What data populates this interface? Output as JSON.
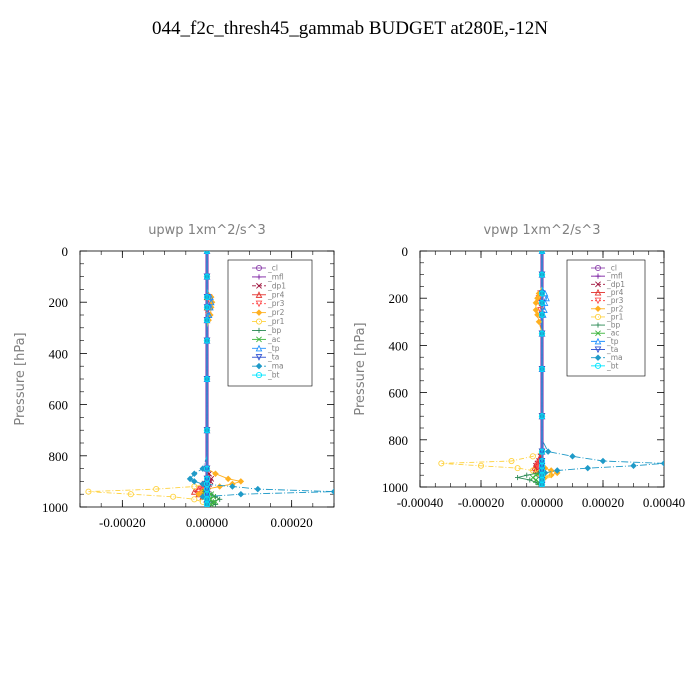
{
  "title": "044_f2c_thresh45_gammab  BUDGET at280E,-12N",
  "legend_entries": [
    "_cl",
    "_mfl",
    "_dp1",
    "_pr4",
    "_pr3",
    "_pr2",
    "_pr1",
    "_bp",
    "_ac",
    "_tp",
    "_ta",
    "_ma",
    "_bt"
  ],
  "colors": {
    "_cl": "#8e44ad",
    "_mfl": "#7b1fa2",
    "_dp1": "#a0153e",
    "_pr4": "#e3342f",
    "_pr3": "#ff4d4d",
    "_pr2": "#ffb020",
    "_pr1": "#ffd23f",
    "_bp": "#2e8b57",
    "_ac": "#3cb43c",
    "_tp": "#1e90ff",
    "_ta": "#3050d0",
    "_ma": "#1f9ac8",
    "_bt": "#00e5ff"
  },
  "chart_data": [
    {
      "type": "line",
      "title": "upwp   1xm^2/s^3",
      "ylabel": "Pressure [hPa]",
      "xlabel": "",
      "xlim": [
        -0.0003,
        0.0003
      ],
      "ylim": [
        1000,
        0
      ],
      "x_ticks": [
        "-0.00020",
        "0.00000",
        "0.00020"
      ],
      "x_tick_values": [
        -0.0002,
        0.0,
        0.0002
      ],
      "y_ticks": [
        "0",
        "200",
        "400",
        "600",
        "800",
        "1000"
      ],
      "y_tick_values": [
        0,
        200,
        400,
        600,
        800,
        1000
      ],
      "pressure": [
        0,
        50,
        100,
        150,
        180,
        200,
        220,
        250,
        270,
        300,
        350,
        400,
        500,
        600,
        700,
        800,
        850,
        870,
        890,
        900,
        910,
        920,
        930,
        940,
        950,
        960,
        970,
        980,
        990,
        1000
      ],
      "series": [
        {
          "name": "_cl",
          "values": [
            0,
            0,
            0,
            0,
            0,
            0,
            0,
            0,
            0,
            0,
            0,
            0,
            0,
            0,
            0,
            0,
            0,
            0,
            0,
            0,
            0,
            0,
            0,
            0,
            0,
            0,
            0,
            0,
            0,
            0
          ]
        },
        {
          "name": "_mfl",
          "values": [
            0,
            0,
            0,
            0,
            0,
            0,
            0,
            0,
            0,
            0,
            0,
            0,
            0,
            0,
            0,
            0,
            0,
            0,
            0,
            0,
            0,
            0,
            0,
            0,
            0,
            0,
            0,
            0,
            0,
            0
          ]
        },
        {
          "name": "_dp1",
          "values": [
            0,
            0,
            0,
            0,
            0,
            0,
            0,
            0,
            0,
            0,
            0,
            0,
            0,
            0,
            0,
            0,
            0,
            5e-06,
            1e-05,
            8e-06,
            5e-06,
            3e-06,
            2e-06,
            -5e-06,
            -1.5e-05,
            -1e-05,
            0,
            0,
            0,
            0
          ]
        },
        {
          "name": "_pr4",
          "values": [
            0,
            0,
            0,
            0,
            0,
            0,
            0,
            0,
            0,
            0,
            0,
            0,
            0,
            0,
            0,
            0,
            0,
            0,
            0,
            0,
            0,
            -1e-05,
            -2e-05,
            -3e-05,
            -2e-05,
            -1e-05,
            0,
            0,
            0,
            0
          ]
        },
        {
          "name": "_pr3",
          "values": [
            0,
            0,
            0,
            0,
            5e-06,
            8e-06,
            5e-06,
            3e-06,
            0,
            0,
            0,
            0,
            0,
            0,
            0,
            0,
            0,
            0,
            0,
            0,
            -5e-06,
            -1e-05,
            -1.5e-05,
            -2e-05,
            -1.5e-05,
            -1e-05,
            0,
            0,
            0,
            0
          ]
        },
        {
          "name": "_pr2",
          "values": [
            0,
            0,
            0,
            0,
            1e-05,
            1.2e-05,
            1e-05,
            8e-06,
            4e-06,
            0,
            0,
            0,
            0,
            0,
            0,
            0,
            0,
            2e-05,
            5e-05,
            8e-05,
            6e-05,
            3e-05,
            0,
            -1e-05,
            -2e-05,
            -1e-05,
            0,
            0,
            0,
            0
          ]
        },
        {
          "name": "_pr1",
          "values": [
            0,
            0,
            0,
            0,
            0,
            0,
            0,
            0,
            0,
            0,
            0,
            0,
            0,
            0,
            0,
            0,
            0,
            0,
            0,
            0,
            0,
            -3e-05,
            -0.00012,
            -0.00028,
            -0.00018,
            -8e-05,
            -3e-05,
            -1e-05,
            0,
            0
          ]
        },
        {
          "name": "_bp",
          "values": [
            0,
            0,
            0,
            0,
            0,
            0,
            0,
            0,
            0,
            0,
            0,
            0,
            0,
            0,
            0,
            0,
            0,
            0,
            0,
            0,
            0,
            0,
            0,
            -5e-06,
            1e-05,
            2e-05,
            3e-05,
            1e-05,
            2e-05,
            0
          ]
        },
        {
          "name": "_ac",
          "values": [
            0,
            0,
            0,
            0,
            0,
            0,
            0,
            0,
            0,
            0,
            0,
            0,
            0,
            0,
            0,
            0,
            0,
            0,
            0,
            0,
            0,
            0,
            0,
            -5e-06,
            1e-05,
            1.5e-05,
            5e-06,
            2e-05,
            1e-05,
            0
          ]
        },
        {
          "name": "_tp",
          "values": [
            0,
            0,
            0,
            0,
            8e-06,
            1e-05,
            8e-06,
            5e-06,
            0,
            0,
            0,
            0,
            0,
            0,
            0,
            0,
            0,
            0,
            0,
            0,
            0,
            0,
            0,
            0,
            0,
            0,
            0,
            0,
            0,
            0
          ]
        },
        {
          "name": "_ta",
          "values": [
            0,
            0,
            0,
            0,
            0,
            0,
            0,
            0,
            0,
            0,
            0,
            0,
            0,
            0,
            0,
            0,
            0,
            0,
            0,
            0,
            0,
            0,
            0,
            0,
            0,
            0,
            0,
            0,
            0,
            0
          ]
        },
        {
          "name": "_ma",
          "values": [
            0,
            0,
            0,
            0,
            0,
            0,
            0,
            0,
            0,
            0,
            0,
            0,
            0,
            0,
            0,
            0,
            -1e-05,
            -3e-05,
            -4e-05,
            -3e-05,
            -1e-05,
            6e-05,
            0.00012,
            0.0003,
            8e-05,
            -1e-05,
            0,
            0,
            0,
            0
          ]
        },
        {
          "name": "_bt",
          "values": [
            0,
            0,
            0,
            0,
            0,
            0,
            0,
            0,
            0,
            0,
            0,
            0,
            0,
            0,
            0,
            0,
            0,
            0,
            0,
            0,
            0,
            0,
            0,
            0,
            0,
            0,
            0,
            0,
            0,
            0
          ]
        }
      ]
    },
    {
      "type": "line",
      "title": "vpwp   1xm^2/s^3",
      "ylabel": "Pressure [hPa]",
      "xlabel": "",
      "xlim": [
        -0.0004,
        0.0004
      ],
      "ylim": [
        1000,
        0
      ],
      "x_ticks": [
        "-0.00040",
        "-0.00020",
        "0.00000",
        "0.00020",
        "0.00040"
      ],
      "x_tick_values": [
        -0.0004,
        -0.0002,
        0.0,
        0.0002,
        0.0004
      ],
      "y_ticks": [
        "0",
        "200",
        "400",
        "600",
        "800",
        "1000"
      ],
      "y_tick_values": [
        0,
        200,
        400,
        600,
        800,
        1000
      ],
      "pressure": [
        0,
        50,
        100,
        150,
        180,
        200,
        220,
        250,
        270,
        300,
        350,
        400,
        500,
        600,
        700,
        800,
        850,
        870,
        890,
        900,
        910,
        920,
        930,
        940,
        950,
        960,
        970,
        980,
        990,
        1000
      ],
      "series": [
        {
          "name": "_cl",
          "values": [
            0,
            0,
            0,
            0,
            0,
            0,
            0,
            0,
            0,
            0,
            0,
            0,
            0,
            0,
            0,
            0,
            0,
            0,
            0,
            0,
            0,
            0,
            0,
            0,
            0,
            0,
            0,
            0,
            0,
            0
          ]
        },
        {
          "name": "_mfl",
          "values": [
            0,
            0,
            0,
            0,
            0,
            0,
            0,
            0,
            0,
            0,
            0,
            0,
            0,
            0,
            0,
            0,
            0,
            0,
            0,
            0,
            0,
            0,
            0,
            0,
            0,
            0,
            0,
            0,
            0,
            0
          ]
        },
        {
          "name": "_dp1",
          "values": [
            0,
            0,
            0,
            0,
            0,
            0,
            0,
            0,
            0,
            0,
            0,
            0,
            0,
            0,
            0,
            0,
            0,
            -5e-06,
            -1e-05,
            -1.5e-05,
            -2e-05,
            -2e-05,
            -1.5e-05,
            -1e-05,
            -5e-06,
            0,
            0,
            0,
            0,
            0
          ]
        },
        {
          "name": "_pr4",
          "values": [
            0,
            0,
            0,
            0,
            0,
            0,
            0,
            0,
            0,
            0,
            0,
            0,
            0,
            0,
            0,
            0,
            0,
            -5e-06,
            -1e-05,
            -1.5e-05,
            -2e-05,
            -2.5e-05,
            -2e-05,
            -1e-05,
            0,
            0,
            0,
            0,
            0,
            0
          ]
        },
        {
          "name": "_pr3",
          "values": [
            0,
            0,
            0,
            0,
            -5e-06,
            -1e-05,
            -8e-06,
            -5e-06,
            0,
            0,
            0,
            0,
            0,
            0,
            0,
            0,
            0,
            0,
            -5e-06,
            -1e-05,
            -1.5e-05,
            -1e-05,
            -5e-06,
            0,
            0,
            0,
            0,
            0,
            0,
            0
          ]
        },
        {
          "name": "_pr2",
          "values": [
            0,
            0,
            0,
            0,
            -1e-05,
            -1.5e-05,
            -2e-05,
            -2e-05,
            -1.5e-05,
            -1e-05,
            0,
            0,
            0,
            0,
            0,
            0,
            0,
            0,
            0,
            0,
            0,
            1e-05,
            3e-05,
            5e-05,
            3e-05,
            1e-05,
            0,
            0,
            0,
            0
          ]
        },
        {
          "name": "_pr1",
          "values": [
            0,
            0,
            0,
            0,
            0,
            0,
            0,
            0,
            0,
            0,
            0,
            0,
            0,
            0,
            0,
            0,
            0,
            -3e-05,
            -0.0001,
            -0.00033,
            -0.0002,
            -8e-05,
            -3e-05,
            -1e-05,
            2e-05,
            0,
            0,
            0,
            0,
            0
          ]
        },
        {
          "name": "_bp",
          "values": [
            0,
            0,
            0,
            0,
            0,
            0,
            0,
            0,
            0,
            0,
            0,
            0,
            0,
            0,
            0,
            0,
            0,
            0,
            0,
            0,
            0,
            0,
            0,
            -1e-05,
            -5e-05,
            -8e-05,
            -4e-05,
            -2e-05,
            -1e-05,
            0
          ]
        },
        {
          "name": "_ac",
          "values": [
            0,
            0,
            0,
            0,
            0,
            0,
            0,
            0,
            0,
            0,
            0,
            0,
            0,
            0,
            0,
            0,
            0,
            0,
            0,
            0,
            0,
            0,
            0,
            0,
            -2e-05,
            -3e-05,
            -2e-05,
            -1e-05,
            0,
            0
          ]
        },
        {
          "name": "_tp",
          "values": [
            0,
            0,
            0,
            0,
            1e-05,
            1.5e-05,
            1e-05,
            8e-06,
            4e-06,
            0,
            0,
            0,
            0,
            0,
            0,
            0,
            0,
            0,
            0,
            0,
            0,
            0,
            0,
            0,
            0,
            0,
            0,
            0,
            0,
            0
          ]
        },
        {
          "name": "_ta",
          "values": [
            0,
            0,
            0,
            0,
            0,
            0,
            0,
            0,
            0,
            0,
            0,
            0,
            0,
            0,
            0,
            0,
            0,
            0,
            0,
            0,
            0,
            0,
            0,
            0,
            0,
            0,
            0,
            0,
            0,
            0
          ]
        },
        {
          "name": "_ma",
          "values": [
            0,
            0,
            0,
            0,
            0,
            0,
            0,
            0,
            0,
            0,
            0,
            0,
            0,
            0,
            0,
            0,
            2e-05,
            0.0001,
            0.0002,
            0.0004,
            0.0003,
            0.00015,
            5e-05,
            1e-05,
            0,
            0,
            0,
            0,
            0,
            0
          ]
        },
        {
          "name": "_bt",
          "values": [
            0,
            0,
            0,
            0,
            0,
            0,
            0,
            0,
            0,
            0,
            0,
            0,
            0,
            0,
            0,
            0,
            0,
            0,
            0,
            0,
            0,
            0,
            0,
            0,
            0,
            0,
            0,
            0,
            0,
            0
          ]
        }
      ]
    }
  ]
}
